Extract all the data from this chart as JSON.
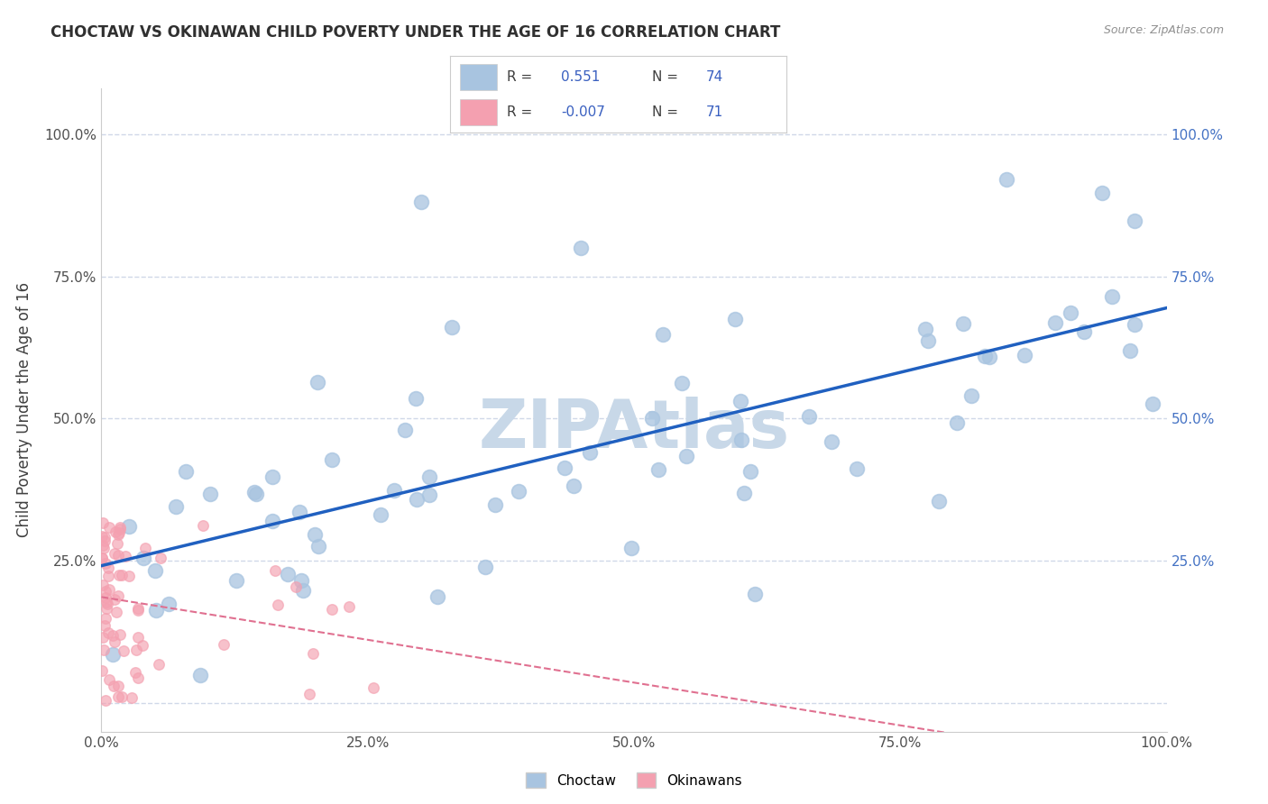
{
  "title": "CHOCTAW VS OKINAWAN CHILD POVERTY UNDER THE AGE OF 16 CORRELATION CHART",
  "source": "Source: ZipAtlas.com",
  "ylabel": "Child Poverty Under the Age of 16",
  "choctaw_R": 0.551,
  "choctaw_N": 74,
  "okinawan_R": -0.007,
  "okinawan_N": 71,
  "choctaw_color": "#a8c4e0",
  "okinawan_color": "#f4a0b0",
  "choctaw_line_color": "#2060c0",
  "okinawan_line_color": "#e07090",
  "background_color": "#ffffff",
  "watermark": "ZIPAtlas",
  "watermark_color": "#c8d8e8",
  "grid_color": "#d0d8e8",
  "xlim": [
    0.0,
    100.0
  ],
  "ylim": [
    -5.0,
    108.0
  ],
  "xticks": [
    0.0,
    25.0,
    50.0,
    75.0,
    100.0
  ],
  "yticks": [
    0.0,
    25.0,
    50.0,
    75.0,
    100.0
  ],
  "xticklabels": [
    "0.0%",
    "25.0%",
    "50.0%",
    "75.0%",
    "100.0%"
  ],
  "yticklabels": [
    "",
    "25.0%",
    "50.0%",
    "75.0%",
    "100.0%"
  ],
  "right_ytick_labels": [
    "100.0%",
    "75.0%",
    "50.0%",
    "25.0%"
  ],
  "right_ytick_positions": [
    100.0,
    75.0,
    50.0,
    25.0
  ]
}
